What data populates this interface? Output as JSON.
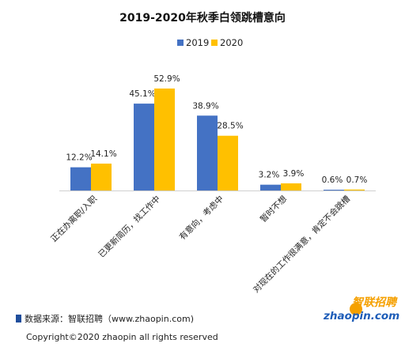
{
  "chart_data": {
    "type": "bar",
    "title": "2019-2020年秋季白领跳槽意向",
    "categories": [
      "正在办离职/入职",
      "已更新简历，找工作中",
      "有意向，考虑中",
      "暂时不想",
      "对现在的工作很满意，肯定不会跳槽"
    ],
    "series": [
      {
        "name": "2019",
        "color": "#4472c4",
        "values": [
          12.2,
          45.1,
          38.9,
          3.2,
          0.6
        ],
        "labels": [
          "12.2%",
          "45.1%",
          "38.9%",
          "3.2%",
          "0.6%"
        ]
      },
      {
        "name": "2020",
        "color": "#ffc000",
        "values": [
          14.1,
          52.9,
          28.5,
          3.9,
          0.7
        ],
        "labels": [
          "14.1%",
          "52.9%",
          "28.5%",
          "3.9%",
          "0.7%"
        ]
      }
    ],
    "xlabel": "",
    "ylabel": "",
    "ylim": [
      0,
      56
    ],
    "grid": false,
    "legend_position": "top-center"
  },
  "footer": {
    "source": "数据来源：智联招聘（www.zhaopin.com)",
    "copyright": "Copyright©2020 zhaopin all rights reserved",
    "source_marker_color": "#1f4e9c"
  },
  "logo": {
    "cn_text": "智联招聘",
    "en_text": "zhaopin.com",
    "cn_color": "#f5a000",
    "en_color": "#1e5db8"
  }
}
